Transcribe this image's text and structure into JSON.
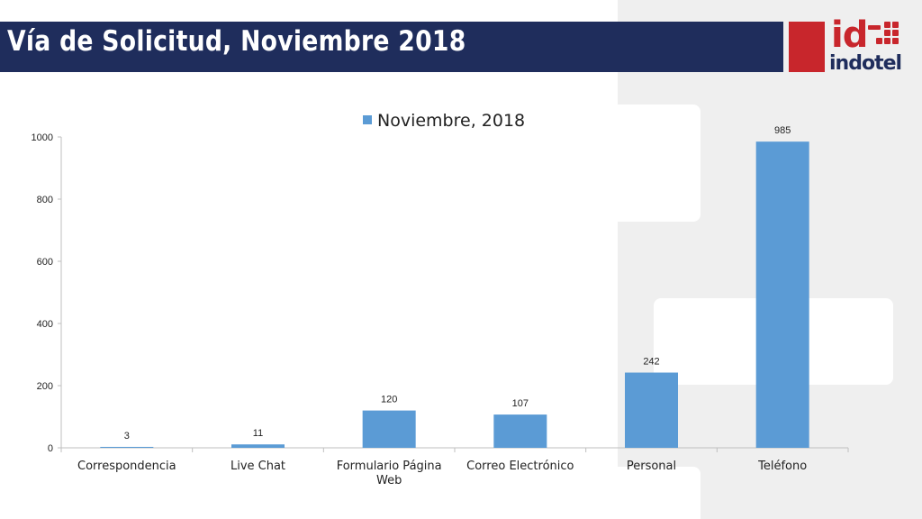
{
  "slide": {
    "title": "Vía de Solicitud, Noviembre 2018"
  },
  "logo": {
    "mark": "id",
    "name": "indotel",
    "icon": "keypad-icon",
    "colors": {
      "red": "#c8262c",
      "navy": "#1f2d5c"
    }
  },
  "chart_data": {
    "type": "bar",
    "title": "",
    "xlabel": "",
    "ylabel": "",
    "categories": [
      "Correspondencia",
      "Live Chat",
      "Formulario Página Web",
      "Correo Electrónico",
      "Personal",
      "Teléfono"
    ],
    "series": [
      {
        "name": "Noviembre, 2018",
        "values": [
          3,
          11,
          120,
          107,
          242,
          985
        ],
        "color": "#5b9bd5"
      }
    ],
    "yticks": [
      0,
      200,
      400,
      600,
      800,
      1000
    ],
    "ylim": [
      0,
      1000
    ],
    "grid": false,
    "legend_position": "top"
  }
}
